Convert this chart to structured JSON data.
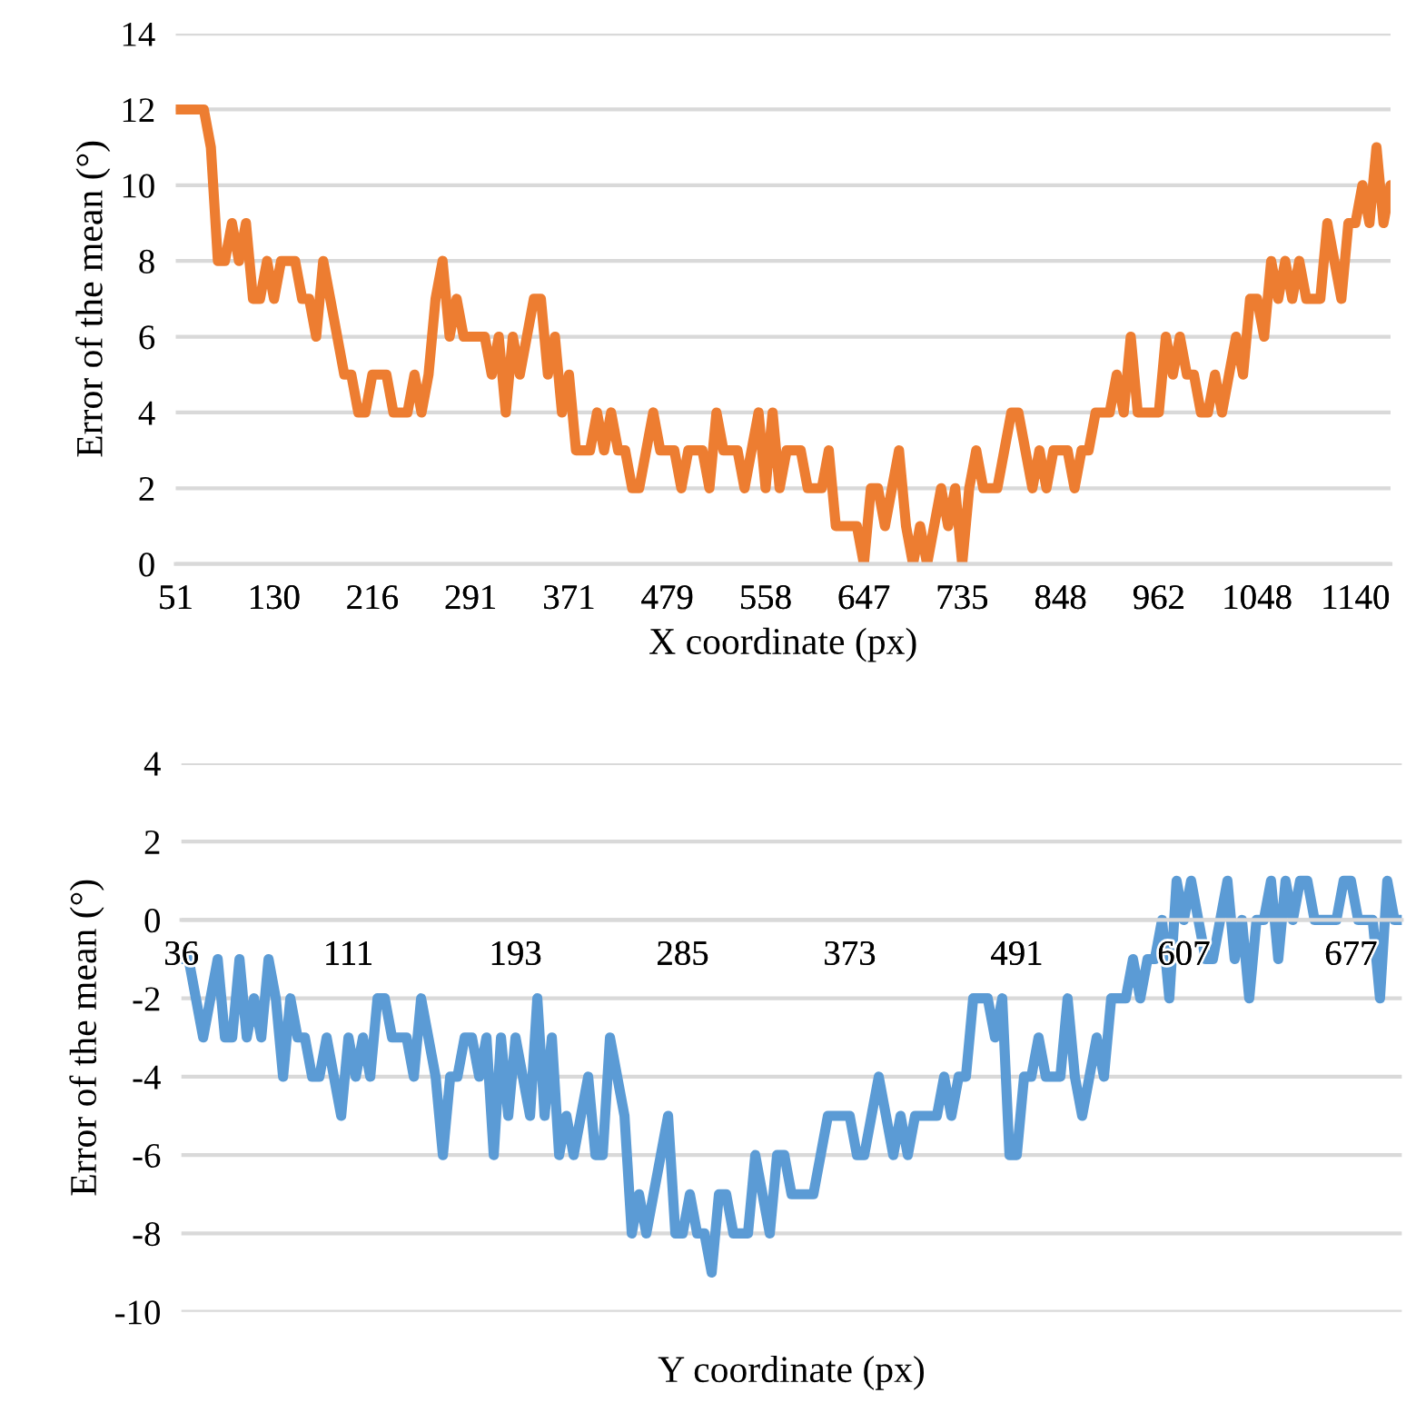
{
  "chart_data": [
    {
      "type": "line",
      "xlabel": "X coordinate (px)",
      "ylabel": "Error of the mean (°)",
      "ylim": [
        0,
        14
      ],
      "yticks": [
        0,
        2,
        4,
        6,
        8,
        10,
        12,
        14
      ],
      "grid": "y",
      "categories": [
        "51",
        null,
        null,
        null,
        null,
        null,
        null,
        null,
        null,
        null,
        null,
        null,
        null,
        null,
        "130",
        null,
        null,
        null,
        null,
        null,
        null,
        null,
        null,
        null,
        null,
        null,
        null,
        null,
        "216",
        null,
        null,
        null,
        null,
        null,
        null,
        null,
        null,
        null,
        null,
        null,
        null,
        null,
        "291",
        null,
        null,
        null,
        null,
        null,
        null,
        null,
        null,
        null,
        null,
        null,
        null,
        null,
        "371",
        null,
        null,
        null,
        null,
        null,
        null,
        null,
        null,
        null,
        null,
        null,
        null,
        null,
        "479",
        null,
        null,
        null,
        null,
        null,
        null,
        null,
        null,
        null,
        null,
        null,
        null,
        null,
        "558",
        null,
        null,
        null,
        null,
        null,
        null,
        null,
        null,
        null,
        null,
        null,
        null,
        null,
        "647",
        null,
        null,
        null,
        null,
        null,
        null,
        null,
        null,
        null,
        null,
        null,
        null,
        null,
        "735",
        null,
        null,
        null,
        null,
        null,
        null,
        null,
        null,
        null,
        null,
        null,
        null,
        null,
        "848",
        null,
        null,
        null,
        null,
        null,
        null,
        null,
        null,
        null,
        null,
        null,
        null,
        null,
        "962",
        null,
        null,
        null,
        null,
        null,
        null,
        null,
        null,
        null,
        null,
        null,
        null,
        null,
        "1048",
        null,
        null,
        null,
        null,
        null,
        null,
        null,
        null,
        null,
        null,
        null,
        null,
        null,
        "1140",
        null,
        null,
        null,
        null,
        null
      ],
      "series": [
        {
          "color": "#ed7d31",
          "values": [
            12,
            12,
            12,
            12,
            12,
            11,
            8,
            8,
            9,
            8,
            9,
            7,
            7,
            8,
            7,
            8,
            8,
            8,
            7,
            7,
            6,
            8,
            7,
            6,
            5,
            5,
            4,
            4,
            5,
            5,
            5,
            4,
            4,
            4,
            5,
            4,
            5,
            7,
            8,
            6,
            7,
            6,
            6,
            6,
            6,
            5,
            6,
            4,
            6,
            5,
            6,
            7,
            7,
            5,
            6,
            4,
            5,
            3,
            3,
            3,
            4,
            3,
            4,
            3,
            3,
            2,
            2,
            3,
            4,
            3,
            3,
            3,
            2,
            3,
            3,
            3,
            2,
            4,
            3,
            3,
            3,
            2,
            3,
            4,
            2,
            4,
            2,
            3,
            3,
            3,
            2,
            2,
            2,
            3,
            1,
            1,
            1,
            1,
            0,
            2,
            2,
            1,
            2,
            3,
            1,
            0,
            1,
            0,
            1,
            2,
            1,
            2,
            0,
            2,
            3,
            2,
            2,
            2,
            3,
            4,
            4,
            3,
            2,
            3,
            2,
            3,
            3,
            3,
            2,
            3,
            3,
            4,
            4,
            4,
            5,
            4,
            6,
            4,
            4,
            4,
            4,
            6,
            5,
            6,
            5,
            5,
            4,
            4,
            5,
            4,
            5,
            6,
            5,
            7,
            7,
            6,
            8,
            7,
            8,
            7,
            8,
            7,
            7,
            7,
            9,
            8,
            7,
            9,
            9,
            10,
            9,
            11,
            9,
            10
          ]
        }
      ]
    },
    {
      "type": "line",
      "xlabel": "Y coordinate (px)",
      "ylabel": "Error of the mean (°)",
      "ylim": [
        -10,
        4
      ],
      "yticks": [
        -10,
        -8,
        -6,
        -4,
        -2,
        0,
        2,
        4
      ],
      "grid": "y",
      "categories": [
        "36",
        null,
        null,
        null,
        null,
        null,
        null,
        null,
        null,
        null,
        null,
        null,
        null,
        null,
        null,
        null,
        null,
        null,
        null,
        null,
        null,
        null,
        null,
        "111",
        null,
        null,
        null,
        null,
        null,
        null,
        null,
        null,
        null,
        null,
        null,
        null,
        null,
        null,
        null,
        null,
        null,
        null,
        null,
        null,
        null,
        null,
        "193",
        null,
        null,
        null,
        null,
        null,
        null,
        null,
        null,
        null,
        null,
        null,
        null,
        null,
        null,
        null,
        null,
        null,
        null,
        null,
        null,
        null,
        null,
        "285",
        null,
        null,
        null,
        null,
        null,
        null,
        null,
        null,
        null,
        null,
        null,
        null,
        null,
        null,
        null,
        null,
        null,
        null,
        null,
        null,
        null,
        null,
        "373",
        null,
        null,
        null,
        null,
        null,
        null,
        null,
        null,
        null,
        null,
        null,
        null,
        null,
        null,
        null,
        null,
        null,
        null,
        null,
        null,
        null,
        null,
        "491",
        null,
        null,
        null,
        null,
        null,
        null,
        null,
        null,
        null,
        null,
        null,
        null,
        null,
        null,
        null,
        null,
        null,
        null,
        null,
        null,
        null,
        null,
        "607",
        null,
        null,
        null,
        null,
        null,
        null,
        null,
        null,
        null,
        null,
        null,
        null,
        null,
        null,
        null,
        null,
        null,
        null,
        null,
        null,
        null,
        null,
        "677",
        null,
        null,
        null,
        null,
        null,
        null,
        null
      ],
      "series": [
        {
          "color": "#5b9bd5",
          "values": [
            -1,
            -1,
            -2,
            -3,
            -2,
            -1,
            -3,
            -3,
            -1,
            -3,
            -2,
            -3,
            -1,
            -2,
            -4,
            -2,
            -3,
            -3,
            -4,
            -4,
            -3,
            -4,
            -5,
            -3,
            -4,
            -3,
            -4,
            -2,
            -2,
            -3,
            -3,
            -3,
            -4,
            -2,
            -3,
            -4,
            -6,
            -4,
            -4,
            -3,
            -3,
            -4,
            -3,
            -6,
            -3,
            -5,
            -3,
            -4,
            -5,
            -2,
            -5,
            -3,
            -6,
            -5,
            -6,
            -5,
            -4,
            -6,
            -6,
            -3,
            -4,
            -5,
            -8,
            -7,
            -8,
            -7,
            -6,
            -5,
            -8,
            -8,
            -7,
            -8,
            -8,
            -9,
            -7,
            -7,
            -8,
            -8,
            -8,
            -6,
            -7,
            -8,
            -6,
            -6,
            -7,
            -7,
            -7,
            -7,
            -6,
            -5,
            -5,
            -5,
            -5,
            -6,
            -6,
            -5,
            -4,
            -5,
            -6,
            -5,
            -6,
            -5,
            -5,
            -5,
            -5,
            -4,
            -5,
            -4,
            -4,
            -2,
            -2,
            -2,
            -3,
            -2,
            -6,
            -6,
            -4,
            -4,
            -3,
            -4,
            -4,
            -4,
            -2,
            -4,
            -5,
            -4,
            -3,
            -4,
            -2,
            -2,
            -2,
            -1,
            -2,
            -1,
            -1,
            0,
            -2,
            1,
            0,
            1,
            0,
            -1,
            -1,
            0,
            1,
            -1,
            0,
            -2,
            0,
            0,
            1,
            -1,
            1,
            0,
            1,
            1,
            0,
            0,
            0,
            0,
            1,
            1,
            0,
            0,
            0,
            -2,
            1,
            0,
            0
          ]
        }
      ]
    }
  ]
}
